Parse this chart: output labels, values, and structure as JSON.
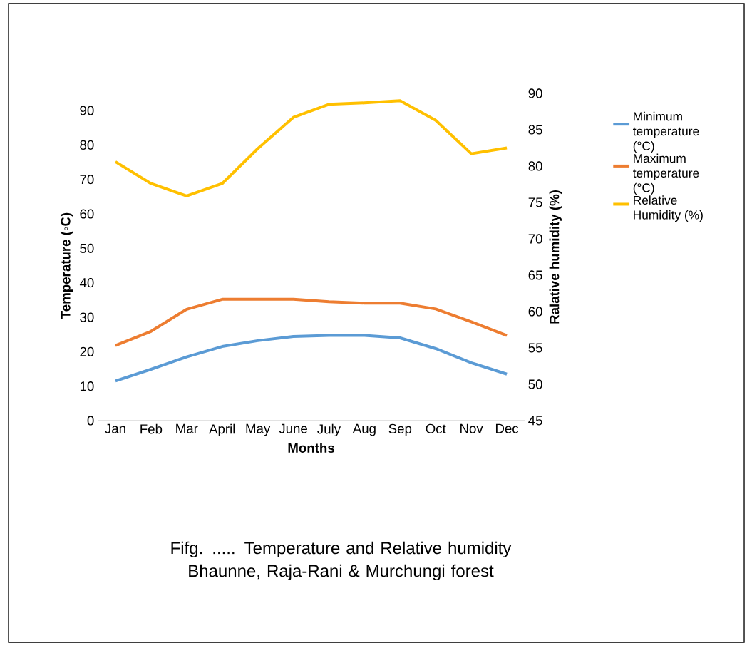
{
  "chart_data": {
    "type": "line",
    "title": "Fifg. .....  Temperature and Relative humidity  Bhaunne, Raja-Rani & Murchungi forest",
    "xlabel": "Months",
    "ylabel": "Temperature (◦C)",
    "y2label": "Ralative humidity (%)",
    "categories": [
      "Jan",
      "Feb",
      "Mar",
      "April",
      "May",
      "June",
      "July",
      "Aug",
      "Sep",
      "Oct",
      "Nov",
      "Dec"
    ],
    "series": [
      {
        "name": "Minimum temperature (°C)",
        "color": "#5b9bd5",
        "values": [
          11.5,
          14.9,
          18.5,
          21.5,
          23.2,
          24.4,
          24.7,
          24.7,
          24.0,
          20.9,
          16.8,
          13.5
        ]
      },
      {
        "name": "Maximum temperature (°C)",
        "color": "#ed7d31",
        "values": [
          21.8,
          25.9,
          32.3,
          35.2,
          35.2,
          35.2,
          34.5,
          34.1,
          34.1,
          32.4,
          28.7,
          24.7
        ]
      },
      {
        "name": "Relative Humidity (%)",
        "color": "#ffc000",
        "axis": "y2",
        "values": [
          80.6,
          77.6,
          75.9,
          77.6,
          82.4,
          86.7,
          88.5,
          88.7,
          89.0,
          86.3,
          81.7,
          82.5
        ]
      }
    ],
    "ylim": [
      0,
      90
    ],
    "yticks": [
      0,
      10,
      20,
      30,
      40,
      50,
      60,
      70,
      80,
      90
    ],
    "y2lim": [
      45,
      90
    ],
    "y2ticks": [
      45,
      50,
      55,
      60,
      65,
      70,
      75,
      80,
      85,
      90
    ],
    "grid": false,
    "legend": "right",
    "marker": "none",
    "line_style": "solid"
  }
}
